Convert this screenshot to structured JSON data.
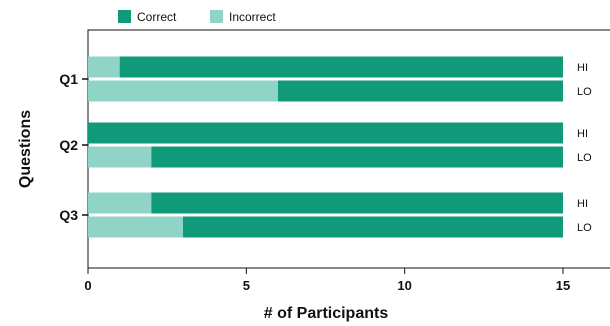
{
  "chart_data": {
    "type": "bar",
    "orientation": "horizontal",
    "stacked": true,
    "xlabel": "# of Participants",
    "ylabel": "Questions",
    "xlim": [
      0,
      15
    ],
    "xticks": [
      0,
      5,
      10,
      15
    ],
    "grid": false,
    "legend_position": "top-left",
    "categories": [
      "Q1",
      "Q2",
      "Q3"
    ],
    "groups": [
      "HI",
      "LO"
    ],
    "series": [
      {
        "name": "Correct",
        "color": "#119a7a",
        "values": {
          "Q1": {
            "HI": 14,
            "LO": 9
          },
          "Q2": {
            "HI": 15,
            "LO": 13
          },
          "Q3": {
            "HI": 13,
            "LO": 12
          }
        }
      },
      {
        "name": "Incorrect",
        "color": "#8fd4c6",
        "values": {
          "Q1": {
            "HI": 1,
            "LO": 6
          },
          "Q2": {
            "HI": 0,
            "LO": 2
          },
          "Q3": {
            "HI": 2,
            "LO": 3
          }
        }
      }
    ]
  }
}
